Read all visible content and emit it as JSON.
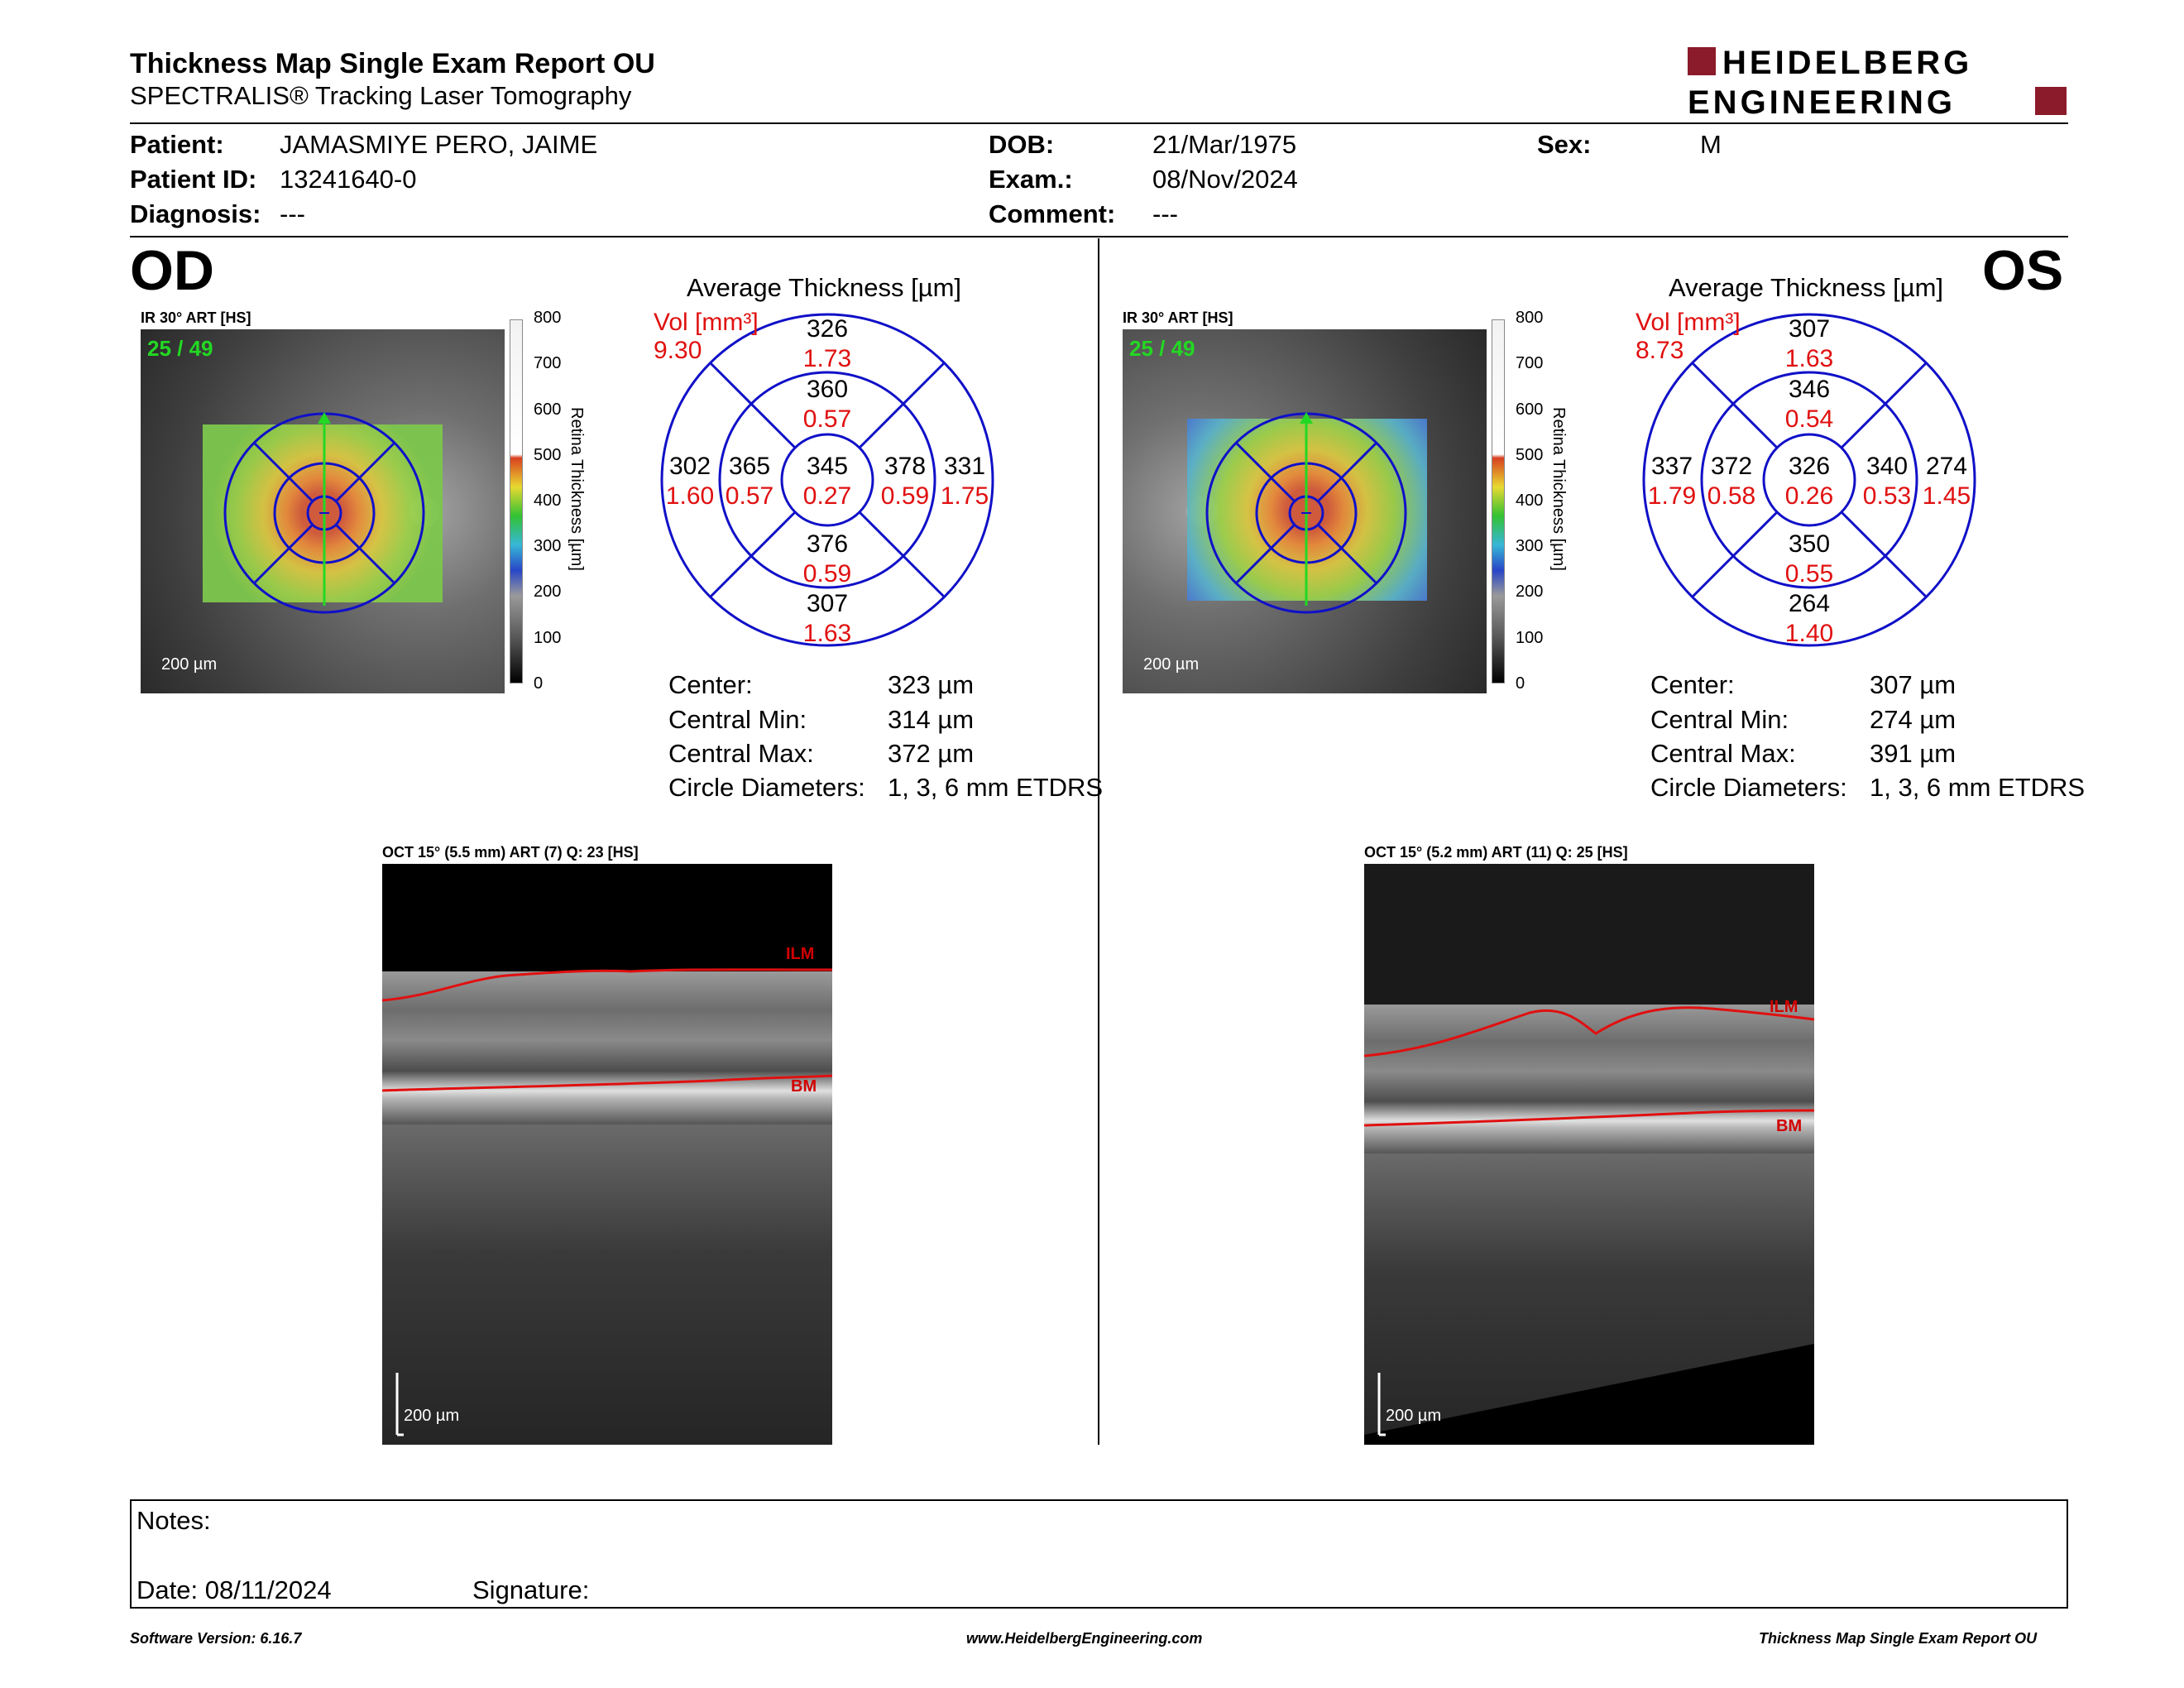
{
  "header": {
    "title": "Thickness Map Single Exam Report OU",
    "subtitle": "SPECTRALIS® Tracking Laser Tomography",
    "logo_line1": "HEIDELBERG",
    "logo_line2": "ENGINEERING"
  },
  "patient": {
    "patient_label": "Patient:",
    "patient_value": "JAMASMIYE PERO, JAIME",
    "id_label": "Patient ID:",
    "id_value": "13241640-0",
    "diagnosis_label": "Diagnosis:",
    "diagnosis_value": "---",
    "dob_label": "DOB:",
    "dob_value": "21/Mar/1975",
    "exam_label": "Exam.:",
    "exam_value": "08/Nov/2024",
    "comment_label": "Comment:",
    "comment_value": "---",
    "sex_label": "Sex:",
    "sex_value": "M"
  },
  "colors": {
    "red": "#e01010",
    "blue": "#1010c8",
    "green": "#23d823",
    "logo": "#8b1a2b"
  },
  "od": {
    "eye": "OD",
    "image_caption": "IR 30° ART [HS]",
    "frames": "25 / 49",
    "scale": "200 µm",
    "colorbar_ticks": [
      "800",
      "700",
      "600",
      "500",
      "400",
      "300",
      "200",
      "100",
      "0"
    ],
    "colorbar_title": "Retina  Thickness [µm]",
    "avg_title": "Average Thickness [µm]",
    "vol_label": "Vol [mm³]",
    "vol_value": "9.30",
    "sectors": {
      "outer_sup": "326",
      "outer_sup_vol": "1.73",
      "inner_sup": "360",
      "inner_sup_vol": "0.57",
      "outer_left": "302",
      "outer_left_vol": "1.60",
      "inner_left": "365",
      "inner_left_vol": "0.57",
      "center": "345",
      "center_vol": "0.27",
      "inner_right": "378",
      "inner_right_vol": "0.59",
      "outer_right": "331",
      "outer_right_vol": "1.75",
      "inner_inf": "376",
      "inner_inf_vol": "0.59",
      "outer_inf": "307",
      "outer_inf_vol": "1.63"
    },
    "stats": {
      "center_label": "Center:",
      "center_value": "323 µm",
      "min_label": "Central Min:",
      "min_value": "314 µm",
      "max_label": "Central Max:",
      "max_value": "372 µm",
      "diam_label": "Circle Diameters:",
      "diam_value": "1, 3, 6 mm ETDRS"
    },
    "oct_caption": "OCT 15° (5.5 mm) ART (7) Q: 23 [HS]",
    "oct_scale": "200 µm",
    "ilm": "ILM",
    "bm": "BM"
  },
  "os": {
    "eye": "OS",
    "image_caption": "IR 30° ART [HS]",
    "frames": "25 / 49",
    "scale": "200 µm",
    "colorbar_ticks": [
      "800",
      "700",
      "600",
      "500",
      "400",
      "300",
      "200",
      "100",
      "0"
    ],
    "colorbar_title": "Retina  Thickness [µm]",
    "avg_title": "Average Thickness [µm]",
    "vol_label": "Vol [mm³]",
    "vol_value": "8.73",
    "sectors": {
      "outer_sup": "307",
      "outer_sup_vol": "1.63",
      "inner_sup": "346",
      "inner_sup_vol": "0.54",
      "outer_left": "337",
      "outer_left_vol": "1.79",
      "inner_left": "372",
      "inner_left_vol": "0.58",
      "center": "326",
      "center_vol": "0.26",
      "inner_right": "340",
      "inner_right_vol": "0.53",
      "outer_right": "274",
      "outer_right_vol": "1.45",
      "inner_inf": "350",
      "inner_inf_vol": "0.55",
      "outer_inf": "264",
      "outer_inf_vol": "1.40"
    },
    "stats": {
      "center_label": "Center:",
      "center_value": "307 µm",
      "min_label": "Central Min:",
      "min_value": "274 µm",
      "max_label": "Central Max:",
      "max_value": "391 µm",
      "diam_label": "Circle Diameters:",
      "diam_value": "1, 3, 6 mm ETDRS"
    },
    "oct_caption": "OCT 15° (5.2 mm) ART (11) Q: 25 [HS]",
    "oct_scale": "200 µm",
    "ilm": "ILM",
    "bm": "BM"
  },
  "notes": {
    "notes_label": "Notes:",
    "date_label": "Date: 08/11/2024",
    "signature_label": "Signature:"
  },
  "footer": {
    "left": "Software Version: 6.16.7",
    "center": "www.HeidelbergEngineering.com",
    "right": "Thickness Map Single Exam Report OU"
  }
}
